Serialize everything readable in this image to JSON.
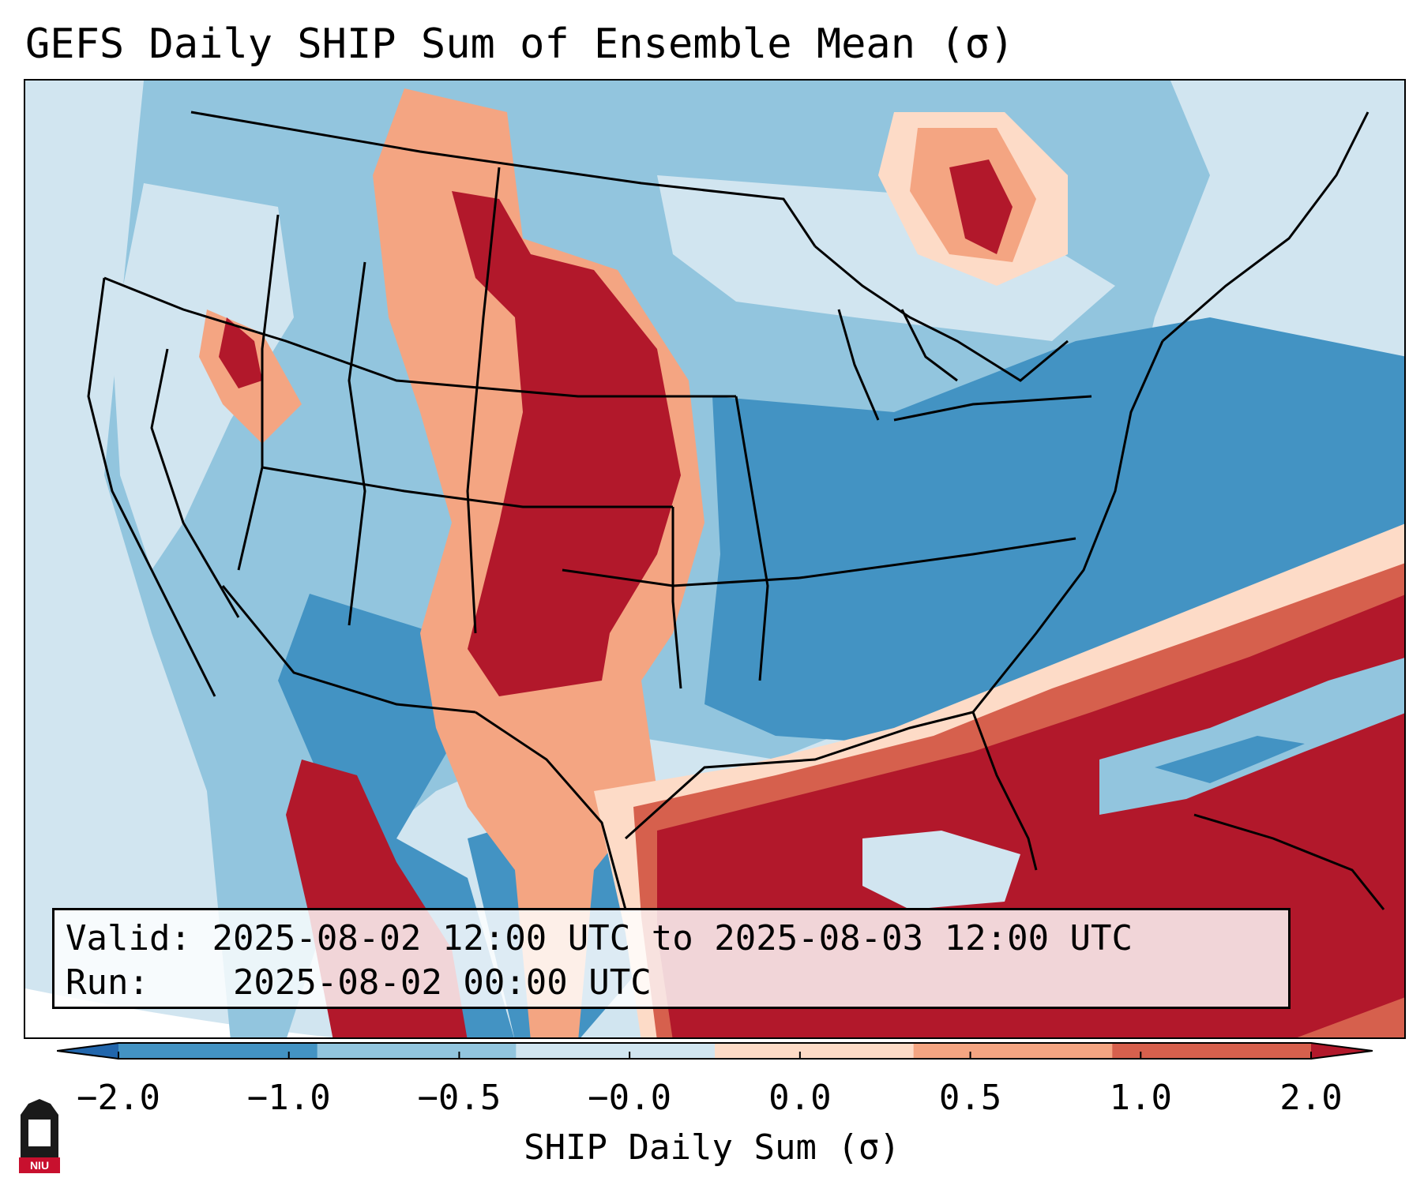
{
  "figure": {
    "title": "GEFS Daily SHIP Sum of Ensemble Mean (σ)"
  },
  "info": {
    "valid_label": "Valid:",
    "valid_value": "2025-08-02 12:00 UTC to 2025-08-03 12:00 UTC",
    "run_label": "Run:",
    "run_value": "2025-08-02 00:00 UTC"
  },
  "colorbar": {
    "label": "SHIP Daily Sum (σ)",
    "ticks": [
      "−2.0",
      "−1.0",
      "−0.5",
      "−0.0",
      "0.0",
      "0.5",
      "1.0",
      "2.0"
    ],
    "colors": [
      "#2166ac",
      "#4393c3",
      "#92c5de",
      "#d1e5f0",
      "#fddbc7",
      "#f4a582",
      "#d6604d",
      "#b2182b"
    ]
  },
  "logo": {
    "text": "NIU"
  }
}
